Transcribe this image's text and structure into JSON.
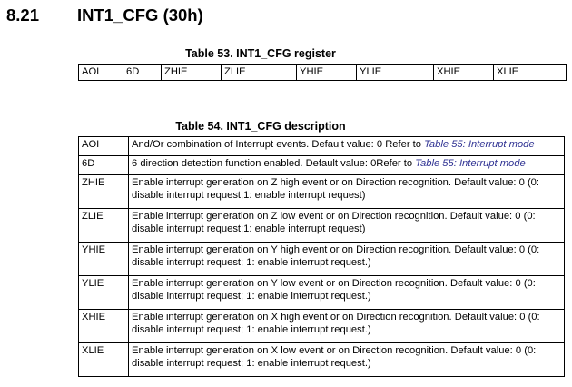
{
  "section": {
    "number": "8.21",
    "title": "INT1_CFG (30h)"
  },
  "register_table": {
    "caption": "Table 53. INT1_CFG register",
    "bits": [
      "AOI",
      "6D",
      "ZHIE",
      "ZLIE",
      "YHIE",
      "YLIE",
      "XHIE",
      "XLIE"
    ]
  },
  "description_table": {
    "caption": "Table 54. INT1_CFG description",
    "rows": [
      {
        "field": "AOI",
        "text": "And/Or combination of Interrupt events. Default value: 0  Refer to ",
        "link": "Table 55: Interrupt mode"
      },
      {
        "field": "6D",
        "text": "6 direction detection function enabled. Default value: 0Refer to ",
        "link": "Table 55: Interrupt mode"
      },
      {
        "field": "ZHIE",
        "text": "Enable interrupt generation on Z high event or on Direction recognition. Default value: 0 (0: disable interrupt request;1: enable interrupt request)"
      },
      {
        "field": "ZLIE",
        "text": "Enable interrupt generation on Z low event or on Direction recognition. Default value: 0 (0: disable interrupt request;1: enable interrupt request)"
      },
      {
        "field": "YHIE",
        "text": "Enable interrupt generation on Y high event or on Direction recognition. Default value: 0 (0: disable interrupt request; 1: enable interrupt request.)"
      },
      {
        "field": "YLIE",
        "text": "Enable interrupt generation on Y low event or on Direction recognition. Default value: 0 (0: disable interrupt request; 1: enable interrupt request.)"
      },
      {
        "field": "XHIE",
        "text": "Enable interrupt generation on X high event or on Direction recognition. Default value: 0 (0: disable interrupt request; 1: enable interrupt request.)"
      },
      {
        "field": "XLIE",
        "text": "Enable interrupt generation on X low event or on Direction recognition. Default value: 0 (0: disable interrupt request; 1: enable interrupt request.)"
      }
    ]
  },
  "colors": {
    "link": "#2e3192",
    "text": "#000000",
    "border": "#000000"
  }
}
